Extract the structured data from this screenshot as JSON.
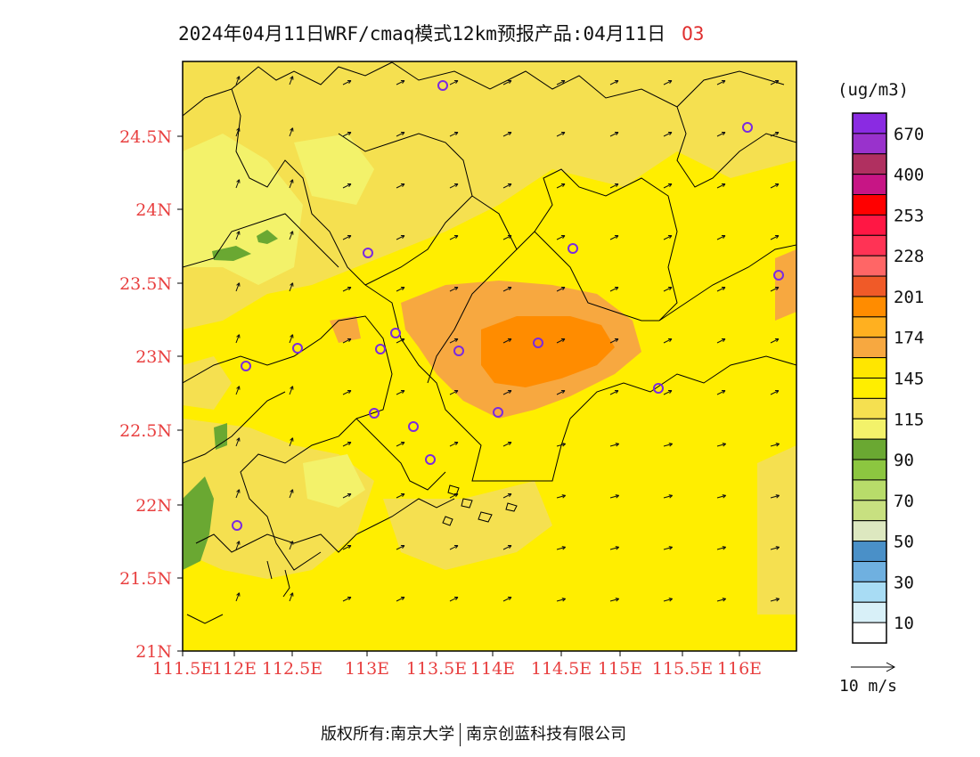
{
  "header": {
    "title": "2024年04月11日WRF/cmaq模式12km预报产品:04月11日",
    "species": "O3"
  },
  "map": {
    "lat_labels": [
      "24.5N",
      "24N",
      "23.5N",
      "23N",
      "22.5N",
      "22N",
      "21.5N",
      "21N"
    ],
    "lon_labels": [
      "111.5E",
      "112E",
      "112.5E",
      "113E",
      "113.5E",
      "114E",
      "114.5E",
      "115E",
      "115.5E",
      "116E"
    ],
    "axis_label_color": "#e84040"
  },
  "legend": {
    "unit": "(ug/m3)",
    "labels": [
      "670",
      "400",
      "253",
      "228",
      "201",
      "174",
      "145",
      "115",
      "90",
      "70",
      "50",
      "30",
      "10"
    ],
    "colors_top_to_bottom": [
      "#8a2be2",
      "#9932cc",
      "#b03060",
      "#c71585",
      "#ff0000",
      "#ff1744",
      "#ff3355",
      "#ff6666",
      "#f05a28",
      "#ff8c00",
      "#ffb020",
      "#f7a840",
      "#ffe600",
      "#ffee00",
      "#f5e050",
      "#f3f26a",
      "#6aa832",
      "#8cc640",
      "#b8dc6a",
      "#c8e080",
      "#dde8c0",
      "#4a90c8",
      "#6fb0e0",
      "#a8dcf4",
      "#d8f0f8",
      "#ffffff"
    ]
  },
  "wind": {
    "reference_label": "10 m/s"
  },
  "footer": {
    "copyright_left": "版权所有:南京大学",
    "copyright_right": "南京创蓝科技有限公司"
  }
}
